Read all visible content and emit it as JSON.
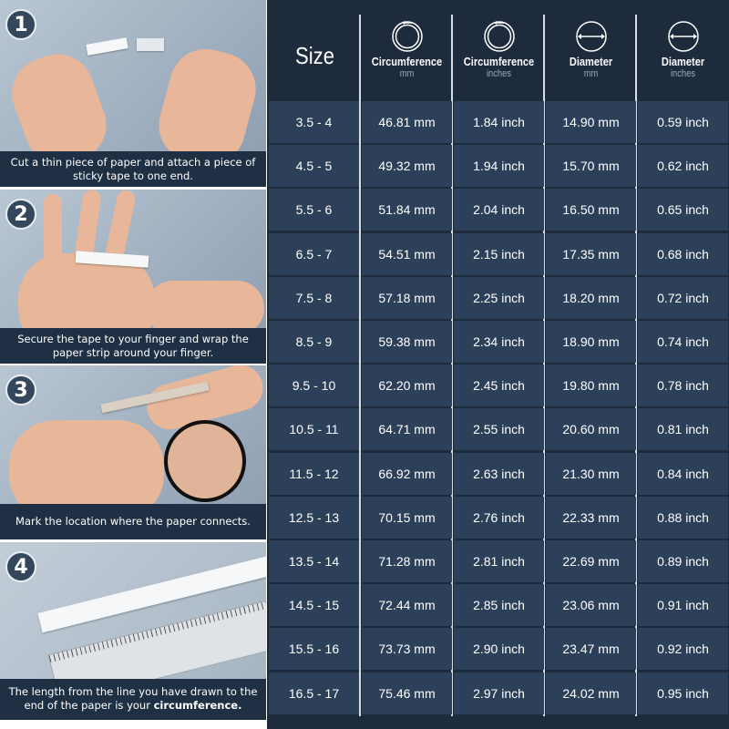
{
  "steps": [
    {
      "number": "1",
      "caption": "Cut a thin piece of paper and attach a piece of sticky tape to one end."
    },
    {
      "number": "2",
      "caption": "Secure the tape to your finger and wrap the paper strip around your finger."
    },
    {
      "number": "3",
      "caption": "Mark the location where the paper connects."
    },
    {
      "number": "4",
      "caption_pre": "The length from the line you have drawn to the end of the paper is your ",
      "caption_bold": "circumference."
    }
  ],
  "table": {
    "headers": [
      {
        "title": "Size",
        "unit": "",
        "icon": ""
      },
      {
        "title": "Circumference",
        "unit": "mm",
        "icon": "ring-circumference-icon"
      },
      {
        "title": "Circumference",
        "unit": "inches",
        "icon": "ring-circumference-icon"
      },
      {
        "title": "Diameter",
        "unit": "mm",
        "icon": "ring-diameter-icon"
      },
      {
        "title": "Diameter",
        "unit": "inches",
        "icon": "ring-diameter-icon"
      }
    ],
    "rows": [
      [
        "3.5 - 4",
        "46.81 mm",
        "1.84 inch",
        "14.90 mm",
        "0.59 inch"
      ],
      [
        "4.5 - 5",
        "49.32 mm",
        "1.94 inch",
        "15.70 mm",
        "0.62 inch"
      ],
      [
        "5.5 - 6",
        "51.84 mm",
        "2.04 inch",
        "16.50 mm",
        "0.65 inch"
      ],
      [
        "6.5 - 7",
        "54.51 mm",
        "2.15 inch",
        "17.35 mm",
        "0.68 inch"
      ],
      [
        "7.5 - 8",
        "57.18 mm",
        "2.25 inch",
        "18.20 mm",
        "0.72 inch"
      ],
      [
        "8.5 - 9",
        "59.38 mm",
        "2.34 inch",
        "18.90 mm",
        "0.74 inch"
      ],
      [
        "9.5 - 10",
        "62.20 mm",
        "2.45 inch",
        "19.80 mm",
        "0.78 inch"
      ],
      [
        "10.5 - 11",
        "64.71 mm",
        "2.55 inch",
        "20.60 mm",
        "0.81 inch"
      ],
      [
        "11.5 - 12",
        "66.92 mm",
        "2.63 inch",
        "21.30 mm",
        "0.84 inch"
      ],
      [
        "12.5 - 13",
        "70.15 mm",
        "2.76 inch",
        "22.33 mm",
        "0.88 inch"
      ],
      [
        "13.5 - 14",
        "71.28 mm",
        "2.81 inch",
        "22.69 mm",
        "0.89 inch"
      ],
      [
        "14.5 - 15",
        "72.44 mm",
        "2.85 inch",
        "23.06 mm",
        "0.91 inch"
      ],
      [
        "15.5 - 16",
        "73.73 mm",
        "2.90 inch",
        "23.47 mm",
        "0.92 inch"
      ],
      [
        "16.5 - 17",
        "75.46 mm",
        "2.97 inch",
        "24.02 mm",
        "0.95 inch"
      ]
    ]
  },
  "colors": {
    "background": "#1d2b3d",
    "cell": "#2d4059",
    "caption_bar": "#1f3044",
    "grid": "#d6dde5"
  }
}
